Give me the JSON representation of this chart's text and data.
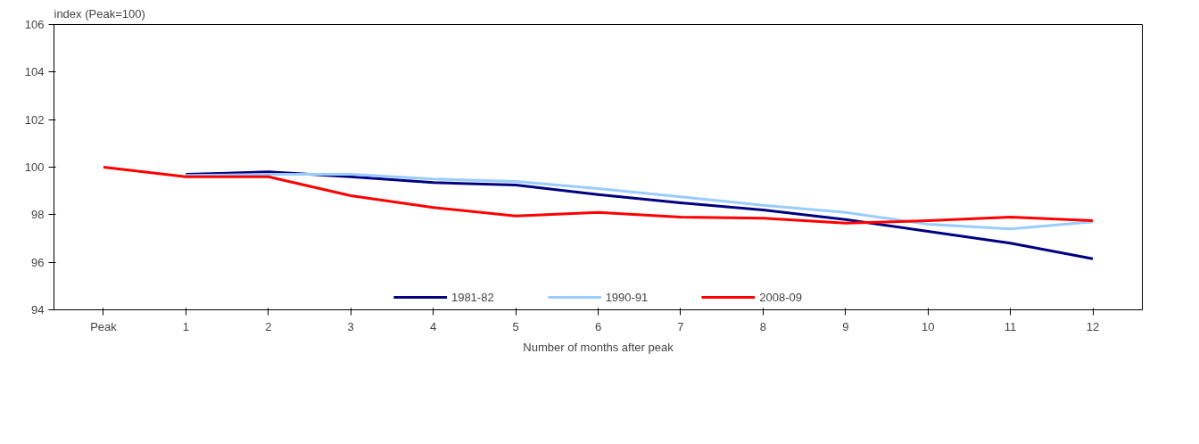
{
  "chart_data": {
    "type": "line",
    "ylabel": "index (Peak=100)",
    "xlabel": "Number of months after peak",
    "categories": [
      "Peak",
      "1",
      "2",
      "3",
      "4",
      "5",
      "6",
      "7",
      "8",
      "9",
      "10",
      "11",
      "12"
    ],
    "series": [
      {
        "name": "1981-82",
        "color": "#000080",
        "values": [
          null,
          99.7,
          99.8,
          99.6,
          99.35,
          99.25,
          98.85,
          98.5,
          98.2,
          97.8,
          97.3,
          96.8,
          96.15
        ]
      },
      {
        "name": "1990-91",
        "color": "#99ccff",
        "values": [
          null,
          99.65,
          99.7,
          99.7,
          99.5,
          99.4,
          99.1,
          98.75,
          98.4,
          98.1,
          97.6,
          97.4,
          97.7
        ]
      },
      {
        "name": "2008-09",
        "color": "#ff0000",
        "values": [
          100,
          99.6,
          99.6,
          98.8,
          98.3,
          97.95,
          98.1,
          97.9,
          97.85,
          97.65,
          97.75,
          97.9,
          97.75
        ]
      }
    ],
    "ylim": [
      94,
      106
    ],
    "yticks": [
      94,
      96,
      98,
      100,
      102,
      104,
      106
    ],
    "grid": false,
    "legend": "bottom"
  }
}
